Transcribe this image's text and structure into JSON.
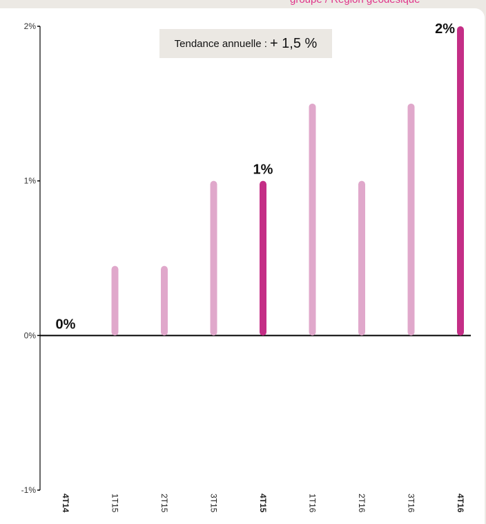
{
  "header": {
    "text": "groupe / Région géodésique"
  },
  "annotation": {
    "label": "Tendance annuelle :",
    "value": "+ 1,5 %"
  },
  "colors": {
    "highlight": "#c42e86",
    "normal": "#e0a8cb",
    "axis": "#000000"
  },
  "chart_data": {
    "type": "bar",
    "title": "",
    "xlabel": "",
    "ylabel": "",
    "ylim": [
      -1,
      2
    ],
    "y_ticks": [
      {
        "value": 2,
        "label": "2%"
      },
      {
        "value": 1,
        "label": "1%"
      },
      {
        "value": 0,
        "label": "0%"
      },
      {
        "value": -1,
        "label": "-1%"
      }
    ],
    "categories": [
      "4T14",
      "1T15",
      "2T15",
      "3T15",
      "4T15",
      "1T16",
      "2T16",
      "3T16",
      "4T16"
    ],
    "values": [
      0,
      0.45,
      0.45,
      1.0,
      1.0,
      1.5,
      1.0,
      1.5,
      2.0
    ],
    "highlighted": [
      true,
      false,
      false,
      false,
      true,
      false,
      false,
      false,
      true
    ],
    "data_labels": [
      {
        "index": 0,
        "text": "0%"
      },
      {
        "index": 4,
        "text": "1%"
      },
      {
        "index": 8,
        "text": "2%"
      }
    ],
    "grid": false,
    "legend": "none"
  }
}
